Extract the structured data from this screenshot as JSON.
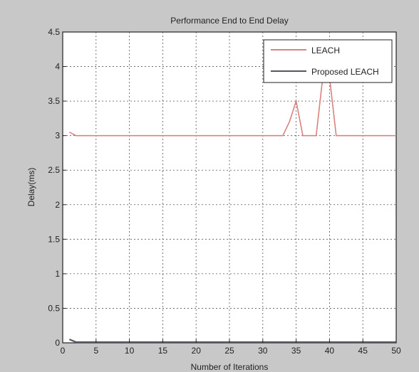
{
  "chart_data": {
    "type": "line",
    "title": "Performance End to End Delay",
    "xlabel": "Number of Iterations",
    "ylabel": "Delay(ms)",
    "xlim": [
      0,
      50
    ],
    "ylim": [
      0,
      4.5
    ],
    "xticks": [
      0,
      5,
      10,
      15,
      20,
      25,
      30,
      35,
      40,
      45,
      50
    ],
    "yticks": [
      0,
      0.5,
      1,
      1.5,
      2,
      2.5,
      3,
      3.5,
      4,
      4.5
    ],
    "grid": true,
    "legend_position": "top-right",
    "series": [
      {
        "name": "LEACH",
        "color": "#d9827f",
        "x": [
          1,
          2,
          3,
          4,
          5,
          6,
          7,
          8,
          9,
          10,
          11,
          12,
          13,
          14,
          15,
          16,
          17,
          18,
          19,
          20,
          21,
          22,
          23,
          24,
          25,
          26,
          27,
          28,
          29,
          30,
          31,
          32,
          33,
          34,
          35,
          36,
          37,
          38,
          39,
          40,
          41,
          42,
          43,
          44,
          45,
          46,
          47,
          48,
          49,
          50
        ],
        "values": [
          3.05,
          3.0,
          3.0,
          3.0,
          3.0,
          3.0,
          3.0,
          3.0,
          3.0,
          3.0,
          3.0,
          3.0,
          3.0,
          3.0,
          3.0,
          3.0,
          3.0,
          3.0,
          3.0,
          3.0,
          3.0,
          3.0,
          3.0,
          3.0,
          3.0,
          3.0,
          3.0,
          3.0,
          3.0,
          3.0,
          3.0,
          3.0,
          3.0,
          3.2,
          3.5,
          3.0,
          3.0,
          3.0,
          3.85,
          3.85,
          3.0,
          3.0,
          3.0,
          3.0,
          3.0,
          3.0,
          3.0,
          3.0,
          3.0,
          3.0
        ]
      },
      {
        "name": "Proposed LEACH",
        "color": "#555566",
        "x": [
          1,
          2,
          3,
          4,
          5,
          6,
          7,
          8,
          9,
          10,
          11,
          12,
          13,
          14,
          15,
          16,
          17,
          18,
          19,
          20,
          21,
          22,
          23,
          24,
          25,
          26,
          27,
          28,
          29,
          30,
          31,
          32,
          33,
          34,
          35,
          36,
          37,
          38,
          39,
          40,
          41,
          42,
          43,
          44,
          45,
          46,
          47,
          48,
          49,
          50
        ],
        "values": [
          0.05,
          0.01,
          0.01,
          0.01,
          0.01,
          0.01,
          0.01,
          0.01,
          0.01,
          0.01,
          0.01,
          0.01,
          0.01,
          0.01,
          0.01,
          0.01,
          0.01,
          0.01,
          0.01,
          0.01,
          0.01,
          0.01,
          0.01,
          0.01,
          0.01,
          0.01,
          0.01,
          0.01,
          0.01,
          0.01,
          0.01,
          0.01,
          0.01,
          0.01,
          0.01,
          0.01,
          0.01,
          0.01,
          0.01,
          0.01,
          0.01,
          0.01,
          0.01,
          0.01,
          0.01,
          0.01,
          0.01,
          0.01,
          0.01,
          0.01
        ]
      }
    ]
  }
}
